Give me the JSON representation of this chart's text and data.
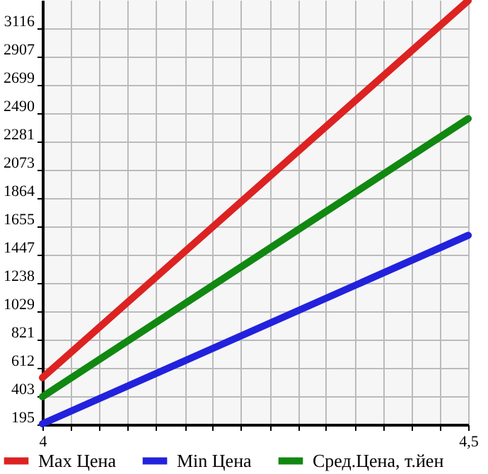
{
  "chart_data": {
    "type": "line",
    "x": [
      4,
      4.5
    ],
    "series": [
      {
        "name": "Max Цена",
        "color": "#dd2222",
        "values": [
          540,
          3320
        ]
      },
      {
        "name": "Min Цена",
        "color": "#2222dd",
        "values": [
          200,
          1590
        ]
      },
      {
        "name": "Сред.Цена, т.йен",
        "color": "#118811",
        "values": [
          400,
          2450
        ]
      }
    ],
    "xlim": [
      4,
      4.5
    ],
    "xticks": [
      4,
      {
        "value": 4.033,
        "label": null
      },
      {
        "value": 4.067,
        "label": null
      },
      {
        "value": 4.1,
        "label": null
      },
      {
        "value": 4.133,
        "label": null
      },
      {
        "value": 4.167,
        "label": null
      },
      {
        "value": 4.2,
        "label": null
      },
      {
        "value": 4.233,
        "label": null
      },
      {
        "value": 4.267,
        "label": null
      },
      {
        "value": 4.3,
        "label": null
      },
      {
        "value": 4.333,
        "label": null
      },
      {
        "value": 4.367,
        "label": null
      },
      {
        "value": 4.4,
        "label": null
      },
      {
        "value": 4.433,
        "label": null
      },
      {
        "value": 4.467,
        "label": null
      },
      {
        "value": 4.5,
        "label": "4,5"
      }
    ],
    "ylim": [
      195,
      3325
    ],
    "yticks": [
      195,
      403,
      612,
      821,
      1029,
      1238,
      1447,
      1655,
      1864,
      2073,
      2281,
      2490,
      2699,
      2907,
      3116
    ],
    "grid": true,
    "legend": "bottom",
    "marker": "none",
    "line_style": "solid"
  }
}
